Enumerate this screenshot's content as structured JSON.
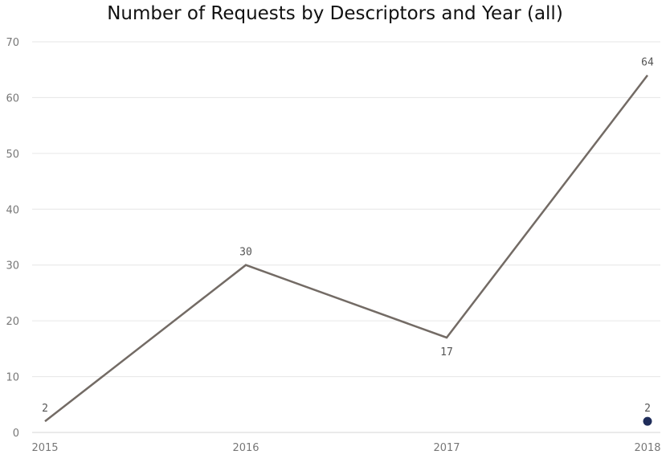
{
  "chart_data": {
    "type": "line",
    "title": "Number of Requests by Descriptors and Year (all)",
    "xlabel": "",
    "ylabel": "",
    "categories": [
      "2015",
      "2016",
      "2017",
      "2018"
    ],
    "ylim": [
      0,
      70
    ],
    "yticks": [
      0,
      10,
      20,
      30,
      40,
      50,
      60,
      70
    ],
    "grid": true,
    "series": [
      {
        "values": [
          2,
          30,
          17,
          64
        ],
        "color": "#736b65",
        "marker": "none"
      },
      {
        "values": [
          null,
          null,
          null,
          2
        ],
        "color": "#1f2d5a",
        "marker": "dot"
      }
    ]
  }
}
